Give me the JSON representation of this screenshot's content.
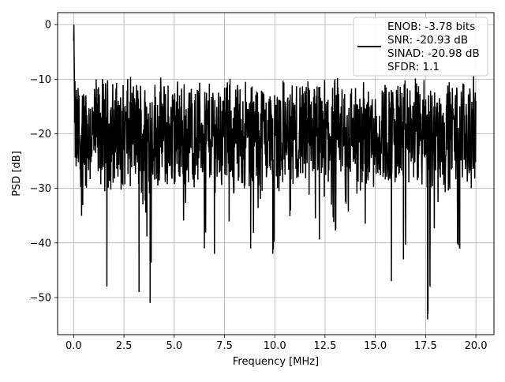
{
  "chart_data": {
    "type": "line",
    "title": "",
    "xlabel": "Frequency [MHz]",
    "ylabel": "PSD [dB]",
    "xlim": [
      -0.8,
      20.9
    ],
    "ylim": [
      -56.8,
      2.2
    ],
    "xticks": [
      0.0,
      2.5,
      5.0,
      7.5,
      10.0,
      12.5,
      15.0,
      17.5,
      20.0
    ],
    "xtick_labels": [
      "0.0",
      "2.5",
      "5.0",
      "7.5",
      "10.0",
      "12.5",
      "15.0",
      "17.5",
      "20.0"
    ],
    "yticks": [
      0,
      -10,
      -20,
      -30,
      -40,
      -50
    ],
    "ytick_labels": [
      "0",
      "−10",
      "−20",
      "−30",
      "−40",
      "−50"
    ],
    "grid": true,
    "legend_placement": "top-right",
    "series_color": "#000000",
    "legend": {
      "lines": [
        "ENOB: -3.78 bits",
        "SNR: -20.93 dB",
        "SINAD: -20.98 dB",
        "SFDR: 1.1"
      ]
    },
    "series": [
      {
        "description_points": "noise-like PSD trace, dense; representative points",
        "x": [
          0.0,
          0.01,
          0.02,
          0.05,
          0.1,
          0.15,
          0.2,
          0.3,
          0.4,
          0.5,
          0.6,
          0.7,
          0.8,
          0.9,
          1.0,
          1.2,
          1.4,
          1.6,
          1.65,
          1.8,
          2.0,
          2.2,
          2.5,
          2.8,
          3.0,
          3.25,
          3.5,
          3.8,
          4.0,
          4.3,
          4.6,
          5.0,
          5.4,
          5.8,
          6.2,
          6.5,
          6.8,
          7.0,
          7.2,
          7.6,
          8.0,
          8.4,
          8.8,
          9.2,
          9.6,
          9.9,
          10.3,
          10.7,
          11.0,
          11.4,
          11.8,
          12.2,
          12.6,
          13.0,
          13.4,
          13.8,
          14.2,
          14.6,
          15.0,
          15.4,
          15.8,
          16.0,
          16.4,
          16.8,
          17.2,
          17.6,
          18.0,
          18.4,
          18.8,
          19.2,
          19.6,
          20.0
        ],
        "y": [
          -3,
          0,
          -5,
          -14,
          -21,
          -17,
          -28,
          -24,
          -36,
          -30,
          -21,
          -40,
          -33,
          -25,
          -38,
          -22,
          -29,
          -27,
          -48,
          -31,
          -20,
          -35,
          -26,
          -30,
          -22,
          -49,
          -28,
          -51,
          -24,
          -33,
          -26,
          -29,
          -38,
          -25,
          -35,
          -41,
          -27,
          -42,
          -24,
          -39,
          -30,
          -27,
          -41,
          -33,
          -28,
          -42,
          -29,
          -37,
          -26,
          -35,
          -30,
          -40,
          -27,
          -38,
          -31,
          -36,
          -29,
          -39,
          -28,
          -35,
          -47,
          -30,
          -43,
          -33,
          -26,
          -54,
          -34,
          -29,
          -38,
          -41,
          -30,
          -25
        ]
      }
    ]
  }
}
